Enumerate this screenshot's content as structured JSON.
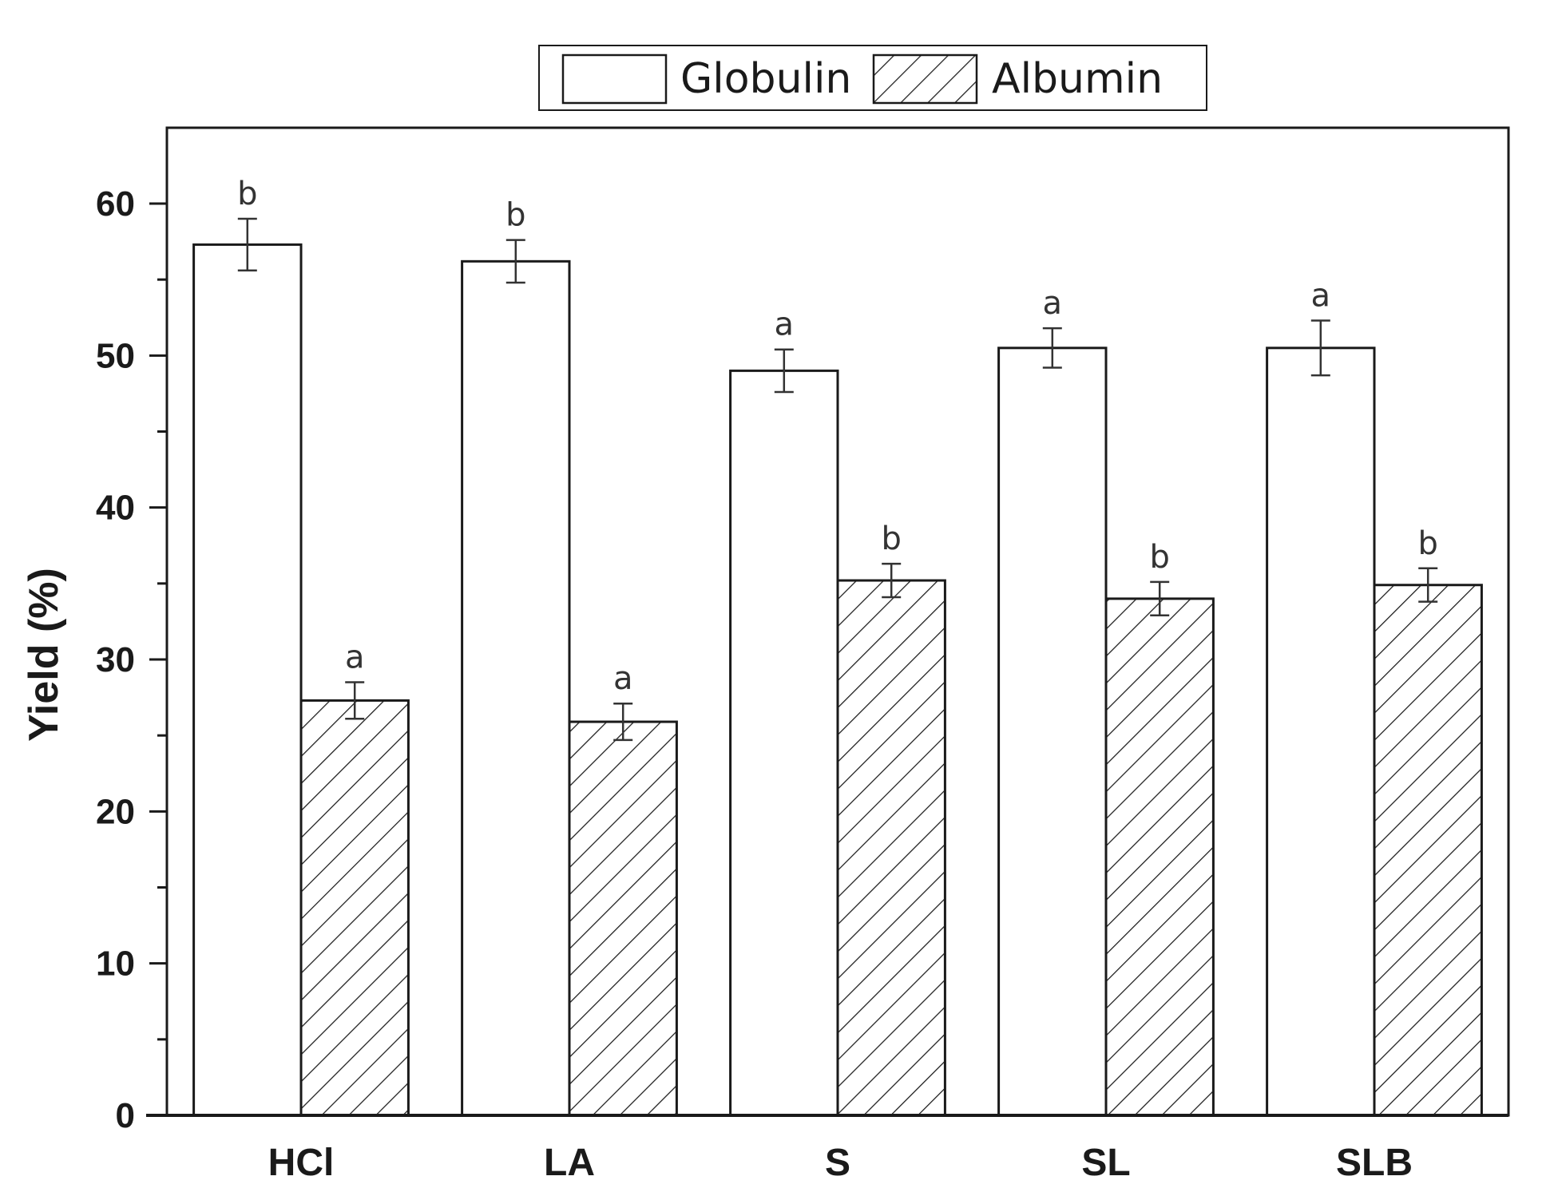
{
  "chart_data": {
    "type": "bar",
    "title": "",
    "xlabel": "",
    "ylabel": "Yield (%)",
    "ylim": [
      0,
      65
    ],
    "yticks": [
      0,
      10,
      20,
      30,
      40,
      50,
      60
    ],
    "ytick_labels": [
      "0",
      "10",
      "20",
      "30",
      "40",
      "50",
      "60"
    ],
    "grid": false,
    "legend_position": "top-center",
    "categories": [
      "HCl",
      "LA",
      "S",
      "SL",
      "SLB"
    ],
    "series": [
      {
        "name": "Globulin",
        "pattern": "none",
        "values": [
          57.3,
          56.2,
          49.0,
          50.5,
          50.5
        ],
        "errors": [
          1.7,
          1.4,
          1.4,
          1.3,
          1.8
        ],
        "significance": [
          "b",
          "b",
          "a",
          "a",
          "a"
        ]
      },
      {
        "name": "Albumin",
        "pattern": "hatched",
        "values": [
          27.3,
          25.9,
          35.2,
          34.0,
          34.9
        ],
        "errors": [
          1.2,
          1.2,
          1.1,
          1.1,
          1.1
        ],
        "significance": [
          "a",
          "a",
          "b",
          "b",
          "b"
        ]
      }
    ],
    "colors": {
      "stroke": "#1a1a1a",
      "fill": "#ffffff",
      "hatch": "#1a1a1a"
    }
  }
}
